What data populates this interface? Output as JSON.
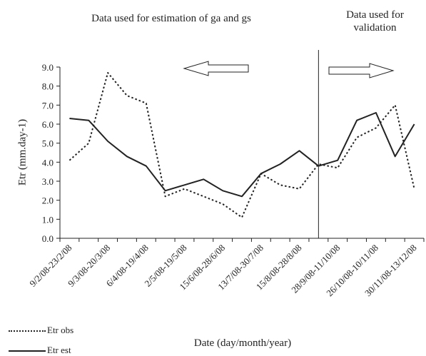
{
  "annotations": {
    "left": "Data used for estimation of ga and gs",
    "right_line1": "Data used for",
    "right_line2": "validation"
  },
  "chart_data": {
    "type": "line",
    "xlabel": "Date (day/month/year)",
    "ylabel": "Etr (mm.day-1)",
    "ylim": [
      0.0,
      9.0
    ],
    "yticks": [
      "0.0",
      "1.0",
      "2.0",
      "3.0",
      "4.0",
      "5.0",
      "6.0",
      "7.0",
      "8.0",
      "9.0"
    ],
    "categories": [
      "9/2/08-23/2/08",
      "",
      "9/3/08-20/3/08",
      "",
      "6/4/08-19/4/08",
      "",
      "2/5/08-19/5/08",
      "",
      "15/6/08-28/6/08",
      "",
      "13/7/08-30/7/08",
      "",
      "15/8/08-28/8/08",
      "",
      "28/9/08-11/10/08",
      "",
      "26/10/08-10/11/08",
      "",
      "30/11/08-13/12/08"
    ],
    "tick_labels": [
      "9/2/08-23/2/08",
      "9/3/08-20/3/08",
      "6/4/08-19/4/08",
      "2/5/08-19/5/08",
      "15/6/08-28/6/08",
      "13/7/08-30/7/08",
      "15/8/08-28/8/08",
      "28/9/08-11/10/08",
      "26/10/08-10/11/08",
      "30/11/08-13/12/08"
    ],
    "series": [
      {
        "name": "Etr obs",
        "style": "dotted",
        "values": [
          4.1,
          5.0,
          8.7,
          7.5,
          7.1,
          2.2,
          2.6,
          2.2,
          1.8,
          1.1,
          3.4,
          2.8,
          2.6,
          3.9,
          3.7,
          5.3,
          5.8,
          7.0,
          2.6
        ]
      },
      {
        "name": "Etr est",
        "style": "solid",
        "values": [
          6.3,
          6.2,
          5.1,
          4.3,
          3.8,
          2.5,
          2.8,
          3.1,
          2.5,
          2.2,
          3.4,
          3.9,
          4.6,
          3.8,
          4.1,
          6.2,
          6.6,
          4.3,
          6.0
        ]
      }
    ],
    "split_after_index": 13,
    "legend_position": "bottom-left",
    "grid": false
  },
  "colors": {
    "line": "#222222",
    "arrow_fill": "#ffffff"
  }
}
